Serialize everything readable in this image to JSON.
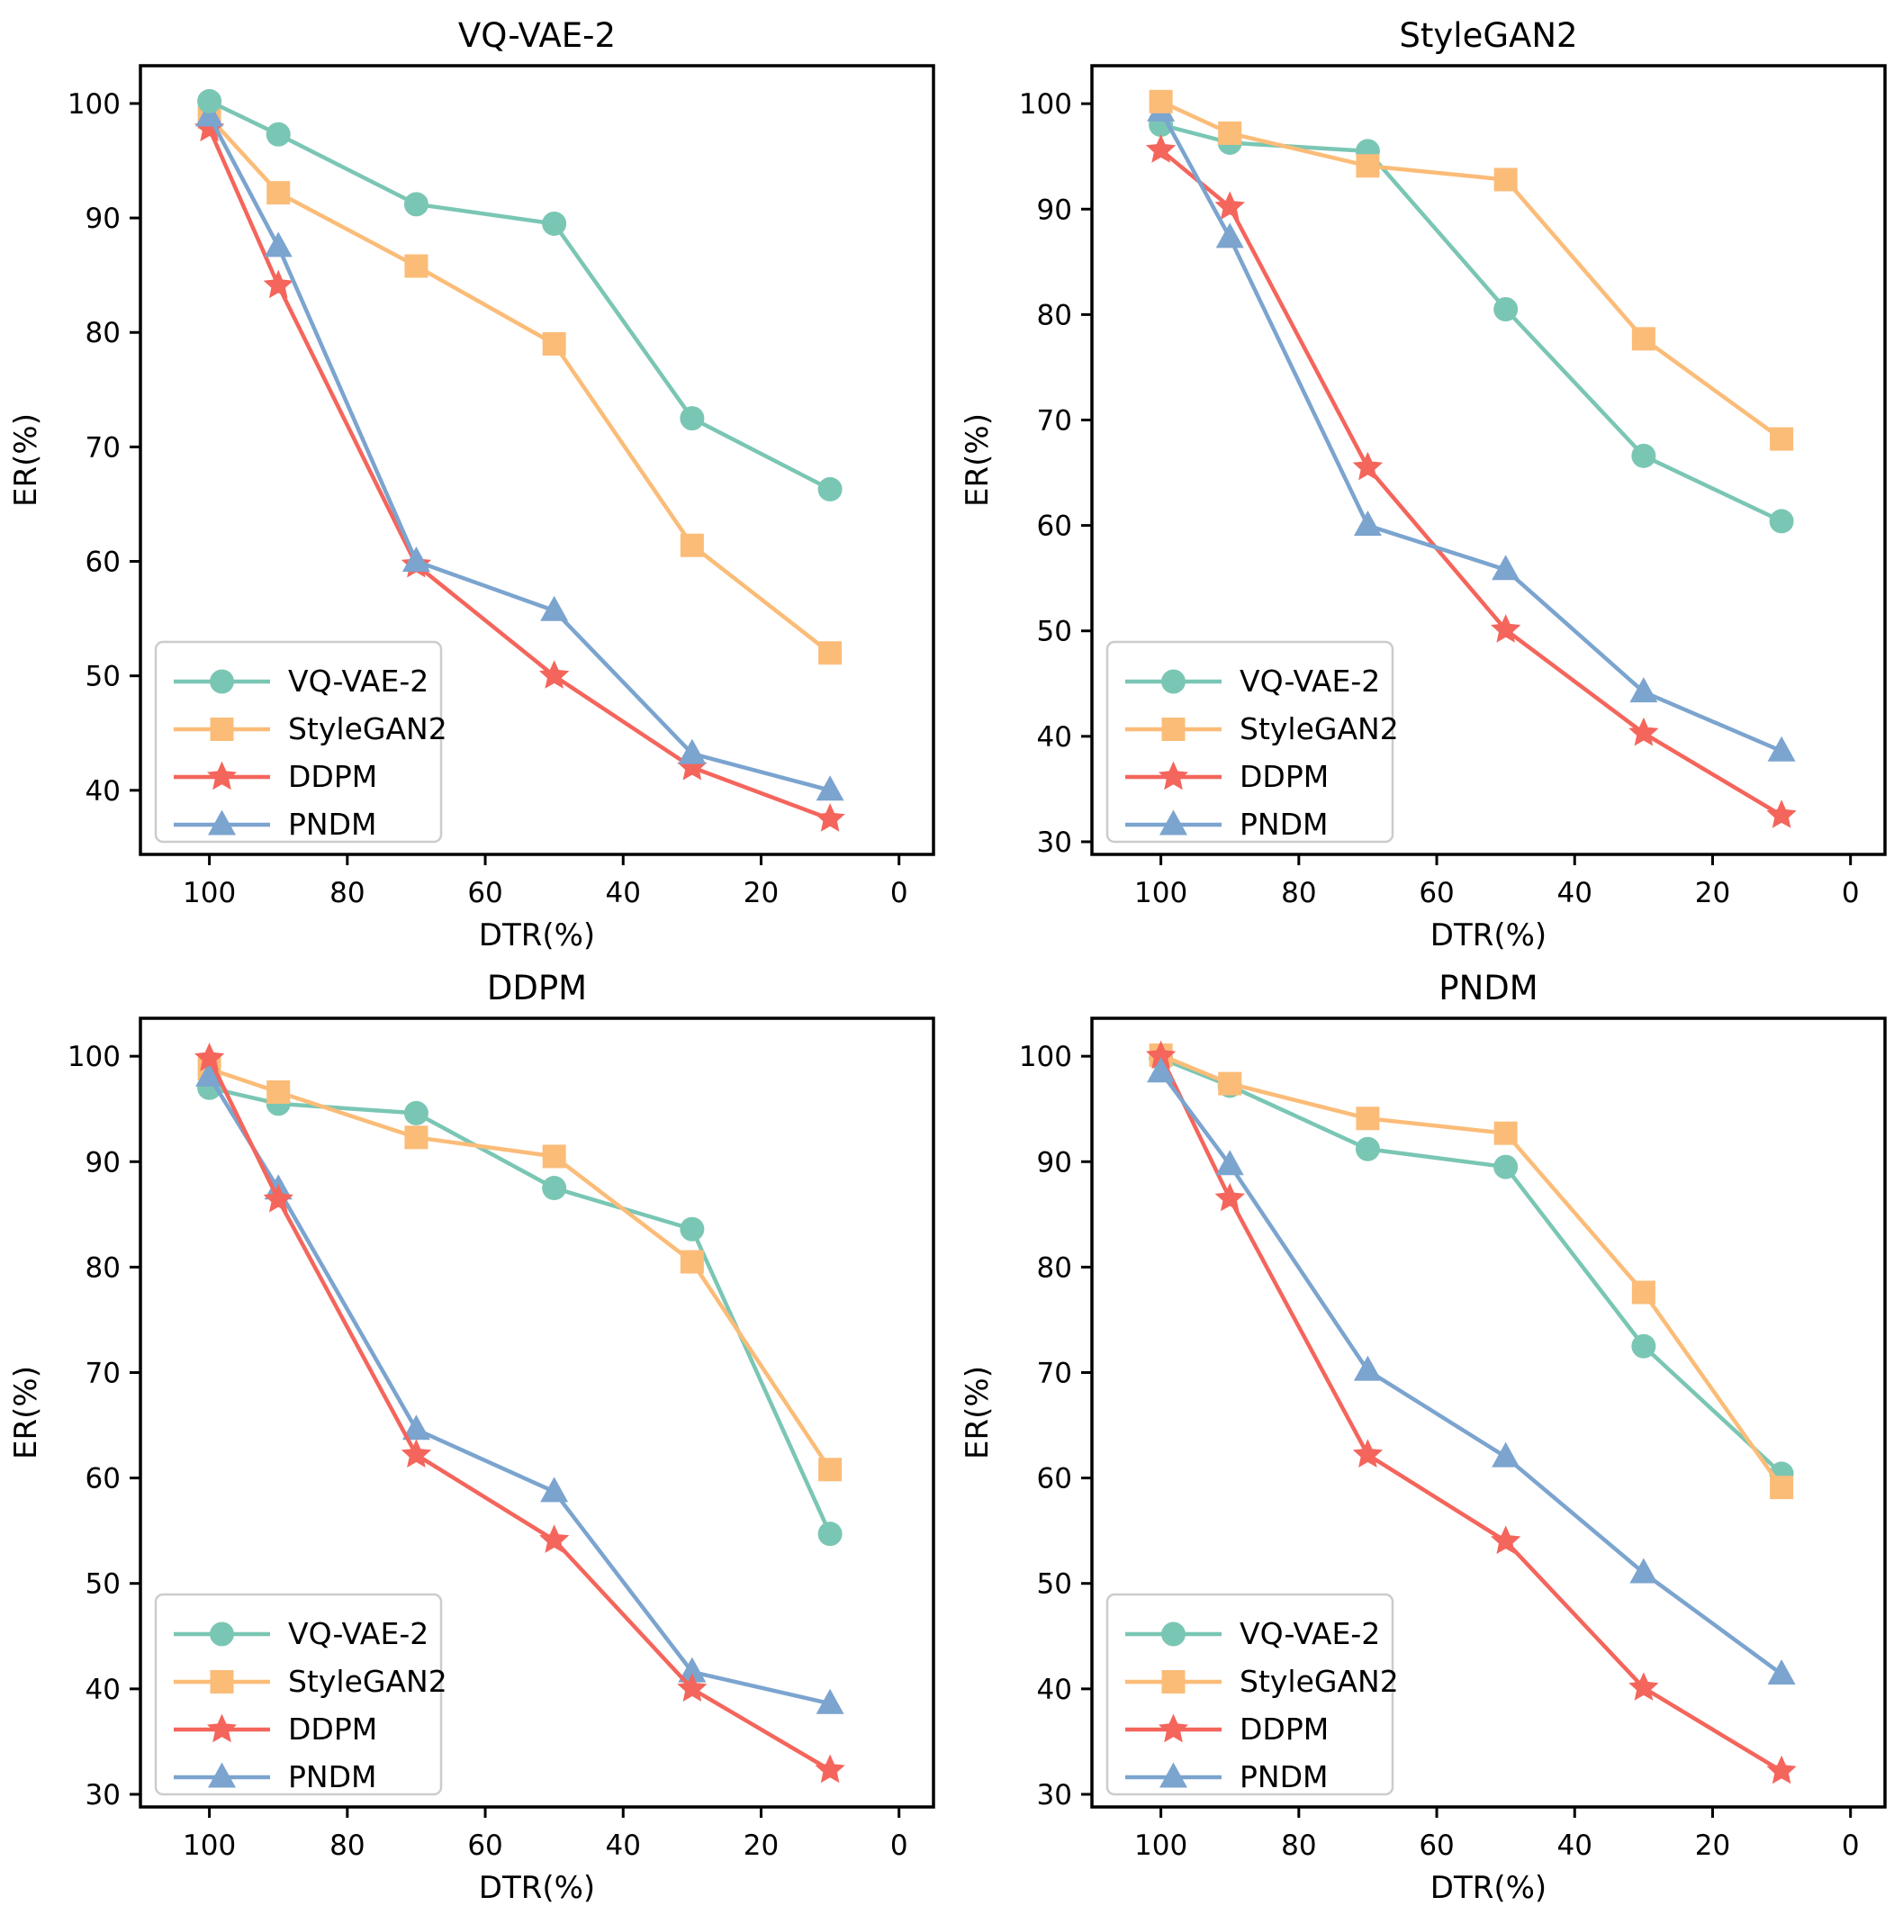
{
  "page": {
    "background": "#ffffff",
    "text_color": "#000000"
  },
  "palette": {
    "vq_vae_2": "#7AC6B4",
    "stylegan2": "#FBBC78",
    "ddpm": "#F4655C",
    "pndm": "#7BA4CF",
    "legend_border": "#cccccc",
    "axis": "#000000"
  },
  "legend": {
    "position": "lower left",
    "entries": [
      "VQ-VAE-2",
      "StyleGAN2",
      "DDPM",
      "PNDM"
    ]
  },
  "chart_data": [
    {
      "type": "line",
      "title": "VQ-VAE-2",
      "xlabel": "DTR(%)",
      "ylabel": "ER(%)",
      "x": [
        100,
        90,
        70,
        50,
        30,
        10
      ],
      "xticks": [
        100,
        80,
        60,
        40,
        20,
        0
      ],
      "yticks": [
        40,
        50,
        60,
        70,
        80,
        90,
        100
      ],
      "xlim": [
        110,
        -5
      ],
      "ylim": [
        34.4,
        103.3
      ],
      "x_reversed": true,
      "grid": false,
      "legend_position": "lower left",
      "series": [
        {
          "name": "VQ-VAE-2",
          "color": "#7AC6B4",
          "marker": "circle",
          "values": [
            100.2,
            97.3,
            91.2,
            89.5,
            72.5,
            66.3
          ]
        },
        {
          "name": "StyleGAN2",
          "color": "#FBBC78",
          "marker": "square",
          "values": [
            98.8,
            92.2,
            85.8,
            79.0,
            61.4,
            52.0
          ]
        },
        {
          "name": "DDPM",
          "color": "#F4655C",
          "marker": "star",
          "values": [
            97.8,
            84.1,
            59.7,
            50.0,
            42.0,
            37.5
          ]
        },
        {
          "name": "PNDM",
          "color": "#7BA4CF",
          "marker": "triangle",
          "values": [
            98.9,
            87.5,
            60.0,
            55.7,
            43.2,
            40.0
          ]
        }
      ]
    },
    {
      "type": "line",
      "title": "StyleGAN2",
      "xlabel": "DTR(%)",
      "ylabel": "ER(%)",
      "x": [
        100,
        90,
        70,
        50,
        30,
        10
      ],
      "xticks": [
        100,
        80,
        60,
        40,
        20,
        0
      ],
      "yticks": [
        30,
        40,
        50,
        60,
        70,
        80,
        90,
        100
      ],
      "xlim": [
        110,
        -5
      ],
      "ylim": [
        28.8,
        103.6
      ],
      "x_reversed": true,
      "grid": false,
      "legend_position": "lower left",
      "series": [
        {
          "name": "VQ-VAE-2",
          "color": "#7AC6B4",
          "marker": "circle",
          "values": [
            98.0,
            96.3,
            95.5,
            80.5,
            66.6,
            60.4
          ]
        },
        {
          "name": "StyleGAN2",
          "color": "#FBBC78",
          "marker": "square",
          "values": [
            100.2,
            97.2,
            94.1,
            92.8,
            77.7,
            68.2
          ]
        },
        {
          "name": "DDPM",
          "color": "#F4655C",
          "marker": "star",
          "values": [
            95.6,
            90.2,
            65.5,
            50.1,
            40.3,
            32.5
          ]
        },
        {
          "name": "PNDM",
          "color": "#7BA4CF",
          "marker": "triangle",
          "values": [
            99.3,
            87.3,
            60.0,
            55.8,
            44.2,
            38.6
          ]
        }
      ]
    },
    {
      "type": "line",
      "title": "DDPM",
      "xlabel": "DTR(%)",
      "ylabel": "ER(%)",
      "x": [
        100,
        90,
        70,
        50,
        30,
        10
      ],
      "xticks": [
        100,
        80,
        60,
        40,
        20,
        0
      ],
      "yticks": [
        30,
        40,
        50,
        60,
        70,
        80,
        90,
        100
      ],
      "xlim": [
        110,
        -5
      ],
      "ylim": [
        28.8,
        103.6
      ],
      "x_reversed": true,
      "grid": false,
      "legend_position": "lower left",
      "series": [
        {
          "name": "VQ-VAE-2",
          "color": "#7AC6B4",
          "marker": "circle",
          "values": [
            97.0,
            95.5,
            94.6,
            87.5,
            83.6,
            54.7
          ]
        },
        {
          "name": "StyleGAN2",
          "color": "#FBBC78",
          "marker": "square",
          "values": [
            98.8,
            96.6,
            92.3,
            90.5,
            80.5,
            60.8
          ]
        },
        {
          "name": "DDPM",
          "color": "#F4655C",
          "marker": "star",
          "values": [
            99.8,
            86.4,
            62.2,
            54.1,
            40.0,
            32.3
          ]
        },
        {
          "name": "PNDM",
          "color": "#7BA4CF",
          "marker": "triangle",
          "values": [
            98.1,
            87.4,
            64.6,
            58.7,
            41.6,
            38.6
          ]
        }
      ]
    },
    {
      "type": "line",
      "title": "PNDM",
      "xlabel": "DTR(%)",
      "ylabel": "ER(%)",
      "x": [
        100,
        90,
        70,
        50,
        30,
        10
      ],
      "xticks": [
        100,
        80,
        60,
        40,
        20,
        0
      ],
      "yticks": [
        30,
        40,
        50,
        60,
        70,
        80,
        90,
        100
      ],
      "xlim": [
        110,
        -5
      ],
      "ylim": [
        28.8,
        103.6
      ],
      "x_reversed": true,
      "grid": false,
      "legend_position": "lower left",
      "series": [
        {
          "name": "VQ-VAE-2",
          "color": "#7AC6B4",
          "marker": "circle",
          "values": [
            99.8,
            97.2,
            91.2,
            89.5,
            72.5,
            60.4
          ]
        },
        {
          "name": "StyleGAN2",
          "color": "#FBBC78",
          "marker": "square",
          "values": [
            100.1,
            97.4,
            94.1,
            92.7,
            77.6,
            59.1
          ]
        },
        {
          "name": "DDPM",
          "color": "#F4655C",
          "marker": "star",
          "values": [
            100.0,
            86.5,
            62.2,
            54.0,
            40.1,
            32.2
          ]
        },
        {
          "name": "PNDM",
          "color": "#7BA4CF",
          "marker": "triangle",
          "values": [
            98.5,
            89.7,
            70.2,
            62.0,
            51.0,
            41.4
          ]
        }
      ]
    }
  ]
}
